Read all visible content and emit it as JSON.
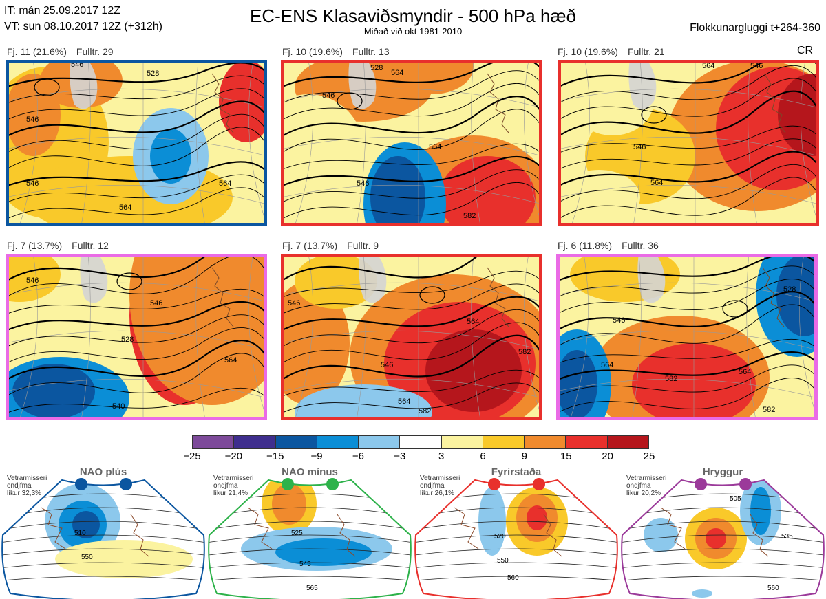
{
  "header": {
    "it_line": "IT: mán 25.09.2017 12Z",
    "vt_line": "VT: sun 08.10.2017 12Z  (+312h)",
    "title": "EC-ENS Klasaviðsmyndir - 500 hPa hæð",
    "subtitle": "Miðað við okt 1981-2010",
    "right_label": "Flokkunargluggi t+264-360",
    "cr_label": "CR"
  },
  "panels": [
    {
      "label": "Fj. 11 (21.6%)",
      "members": "Fulltr. 29",
      "border": "#0b56a0",
      "contours": [
        "546",
        "546",
        "564",
        "546",
        "528",
        "564"
      ]
    },
    {
      "label": "Fj. 10 (19.6%)",
      "members": "Fulltr. 13",
      "border": "#e8302c",
      "contours": [
        "546",
        "564",
        "546",
        "528",
        "564",
        "582"
      ]
    },
    {
      "label": "Fj. 10 (19.6%)",
      "members": "Fulltr. 21",
      "border": "#e8302c",
      "contours": [
        "546",
        "564",
        "564",
        "546"
      ]
    },
    {
      "label": "Fj. 7 (13.7%)",
      "members": "Fulltr. 12",
      "border": "#ea6be6",
      "contours": [
        "546",
        "528",
        "564",
        "540",
        "546"
      ]
    },
    {
      "label": "Fj. 7 (13.7%)",
      "members": "Fulltr. 9",
      "border": "#e8302c",
      "contours": [
        "546",
        "546",
        "564",
        "582",
        "564",
        "582"
      ]
    },
    {
      "label": "Fj. 6 (11.8%)",
      "members": "Fulltr. 36",
      "border": "#ea6be6",
      "contours": [
        "546",
        "564",
        "528",
        "582",
        "564",
        "582"
      ]
    }
  ],
  "colorbar": {
    "colors": [
      "#7d4a9a",
      "#3f2e8e",
      "#0b56a0",
      "#0b8ed6",
      "#8cc8ec",
      "#ffffff",
      "#fbf3a0",
      "#f9c92a",
      "#f08a2d",
      "#e8302c",
      "#b5161c"
    ],
    "ticks": [
      "−25",
      "−20",
      "−15",
      "−9",
      "−6",
      "−3",
      "3",
      "6",
      "9",
      "15",
      "20",
      "25"
    ]
  },
  "regimes": [
    {
      "name": "NAO plús",
      "note": [
        "Vetrarmisseri",
        "ondjfma",
        "líkur 32,3%"
      ],
      "color": "#0b56a0",
      "contours": [
        "510",
        "550"
      ]
    },
    {
      "name": "NAO mínus",
      "note": [
        "Vetrarmisseri",
        "ondjfma",
        "líkur 21,4%"
      ],
      "color": "#2db24a",
      "contours": [
        "525",
        "545",
        "565"
      ]
    },
    {
      "name": "Fyrirstaða",
      "note": [
        "Vetrarmisseri",
        "ondjfma",
        "líkur 26,1%"
      ],
      "color": "#e8302c",
      "contours": [
        "520",
        "550",
        "560"
      ]
    },
    {
      "name": "Hryggur",
      "note": [
        "Vetrarmisseri",
        "ondjfma",
        "líkur 20,2%"
      ],
      "color": "#9b3a9a",
      "contours": [
        "505",
        "535",
        "560"
      ]
    }
  ]
}
